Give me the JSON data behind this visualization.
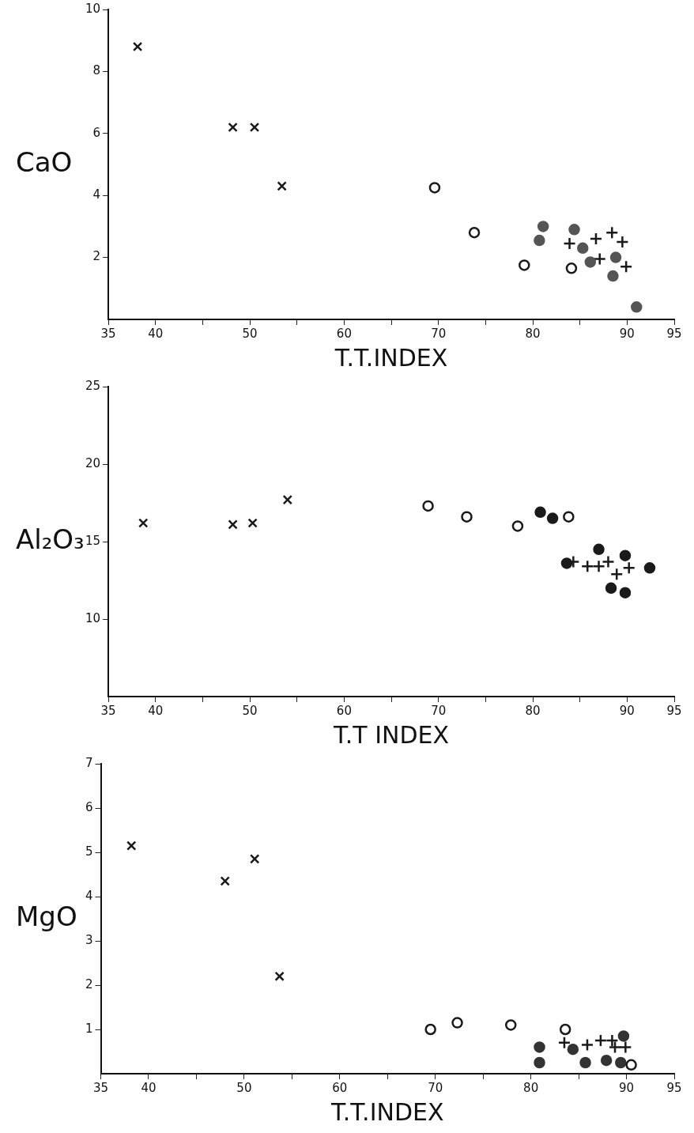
{
  "chart_data": [
    {
      "type": "scatter",
      "ylabel": "CaO",
      "xlabel": "T.T.INDEX",
      "xlim": [
        35,
        95
      ],
      "xticks": [
        35,
        40,
        {
          "value": 45,
          "label": null
        },
        50,
        {
          "value": 55,
          "label": null
        },
        60,
        {
          "value": 65,
          "label": null
        },
        70,
        {
          "value": 75,
          "label": null
        },
        80,
        {
          "value": 85,
          "label": null
        },
        90,
        95
      ],
      "ylim": [
        0,
        10
      ],
      "yticks": [
        2,
        4,
        6,
        8,
        10
      ],
      "grid": false,
      "legend": false,
      "series": [
        {
          "marker": "cross",
          "color": "#1a1a1a",
          "x": [
            38.1,
            48.2,
            50.5,
            53.4
          ],
          "values": [
            8.8,
            6.2,
            6.2,
            4.3
          ]
        },
        {
          "marker": "circle_open",
          "color": "#1a1a1a",
          "x": [
            69.6,
            73.8,
            79.1,
            84.1
          ],
          "values": [
            4.25,
            2.8,
            1.75,
            1.65
          ]
        },
        {
          "marker": "circle",
          "color": "#555555",
          "x": [
            81.1,
            80.7,
            84.4,
            85.3,
            86.1,
            88.8,
            88.5,
            91.0
          ],
          "values": [
            3.0,
            2.55,
            2.9,
            2.3,
            1.85,
            2.0,
            1.4,
            0.4
          ]
        },
        {
          "marker": "plus",
          "color": "#1a1a1a",
          "x": [
            83.9,
            86.7,
            88.4,
            89.5,
            87.1,
            89.9
          ],
          "values": [
            2.45,
            2.6,
            2.8,
            2.5,
            1.95,
            1.7
          ]
        }
      ]
    },
    {
      "type": "scatter",
      "ylabel": "Al₂O₃",
      "xlabel": "T.T INDEX",
      "xlim": [
        35,
        95
      ],
      "xticks": [
        35,
        40,
        {
          "value": 45,
          "label": null
        },
        50,
        {
          "value": 55,
          "label": null
        },
        60,
        {
          "value": 65,
          "label": null
        },
        70,
        {
          "value": 75,
          "label": null
        },
        80,
        {
          "value": 85,
          "label": null
        },
        90,
        95
      ],
      "ylim": [
        5,
        25
      ],
      "yticks": [
        10,
        15,
        20,
        25
      ],
      "grid": false,
      "legend": false,
      "series": [
        {
          "marker": "cross",
          "color": "#1a1a1a",
          "x": [
            38.7,
            48.2,
            50.3,
            54.0
          ],
          "values": [
            16.2,
            16.1,
            16.2,
            17.7
          ]
        },
        {
          "marker": "circle_open",
          "color": "#1a1a1a",
          "x": [
            68.9,
            73.0,
            78.4,
            83.8
          ],
          "values": [
            17.3,
            16.6,
            16.0,
            16.6
          ]
        },
        {
          "marker": "circle",
          "color": "#1a1a1a",
          "x": [
            80.8,
            82.1,
            83.6,
            87.0,
            89.8,
            88.3,
            89.8,
            92.4
          ],
          "values": [
            16.9,
            16.5,
            13.6,
            14.5,
            14.1,
            12.0,
            11.7,
            13.3
          ]
        },
        {
          "marker": "plus",
          "color": "#1a1a1a",
          "x": [
            84.3,
            85.8,
            87.0,
            88.0,
            88.9,
            90.2
          ],
          "values": [
            13.7,
            13.4,
            13.4,
            13.7,
            12.9,
            13.3
          ]
        }
      ]
    },
    {
      "type": "scatter",
      "ylabel": "MgO",
      "xlabel": "T.T.INDEX",
      "xlim": [
        35,
        95
      ],
      "xticks": [
        35,
        40,
        {
          "value": 45,
          "label": null
        },
        50,
        {
          "value": 55,
          "label": null
        },
        60,
        {
          "value": 65,
          "label": null
        },
        70,
        {
          "value": 75,
          "label": null
        },
        80,
        {
          "value": 85,
          "label": null
        },
        90,
        95
      ],
      "ylim": [
        0,
        7
      ],
      "yticks": [
        1,
        2,
        3,
        4,
        5,
        6,
        7
      ],
      "grid": false,
      "legend": false,
      "series": [
        {
          "marker": "cross",
          "color": "#1a1a1a",
          "x": [
            38.2,
            48.0,
            51.1,
            53.7
          ],
          "values": [
            5.15,
            4.35,
            4.85,
            2.2
          ]
        },
        {
          "marker": "circle_open",
          "color": "#1a1a1a",
          "x": [
            69.5,
            72.3,
            77.9,
            83.6,
            90.5
          ],
          "values": [
            1.0,
            1.15,
            1.1,
            1.0,
            0.2
          ]
        },
        {
          "marker": "circle",
          "color": "#333333",
          "x": [
            80.9,
            80.9,
            84.4,
            85.7,
            87.9,
            89.7,
            89.4
          ],
          "values": [
            0.6,
            0.25,
            0.55,
            0.25,
            0.3,
            0.85,
            0.25
          ]
        },
        {
          "marker": "plus",
          "color": "#1a1a1a",
          "x": [
            83.5,
            85.9,
            87.3,
            88.5,
            88.8,
            89.9
          ],
          "values": [
            0.7,
            0.65,
            0.75,
            0.75,
            0.6,
            0.6
          ]
        }
      ]
    }
  ]
}
